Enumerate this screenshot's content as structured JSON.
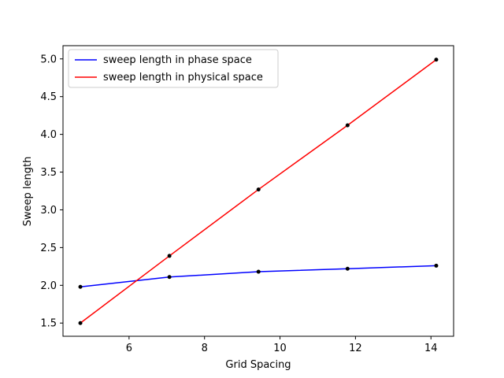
{
  "chart_data": {
    "type": "line",
    "xlabel": "Grid Spacing",
    "ylabel": "Sweep length",
    "xlim": [
      4.25,
      14.6
    ],
    "ylim": [
      1.325,
      5.175
    ],
    "xticks": [
      6,
      8,
      10,
      12,
      14
    ],
    "yticks": [
      1.5,
      2.0,
      2.5,
      3.0,
      3.5,
      4.0,
      4.5,
      5.0
    ],
    "grid": false,
    "legend_position": "top-left",
    "x": [
      4.71,
      7.07,
      9.43,
      11.79,
      14.14
    ],
    "series": [
      {
        "name": "sweep length in phase space",
        "color": "#0000ff",
        "values": [
          1.98,
          2.11,
          2.18,
          2.22,
          2.26
        ]
      },
      {
        "name": "sweep length in physical space",
        "color": "#ff0000",
        "values": [
          1.5,
          2.39,
          3.27,
          4.12,
          4.99
        ]
      }
    ],
    "marker_color": "#000000"
  }
}
